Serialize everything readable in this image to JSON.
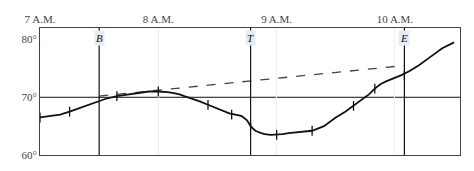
{
  "chart_data": {
    "type": "line",
    "color": "#111111",
    "grid": "x",
    "xlim": [
      7.0,
      10.55
    ],
    "xticks": [
      {
        "value": 7,
        "label": "7 A.M."
      },
      {
        "value": 8,
        "label": "8 A.M."
      },
      {
        "value": 9,
        "label": "9 A.M."
      },
      {
        "value": 10,
        "label": "10 A.M."
      }
    ],
    "ylim": [
      60,
      82
    ],
    "yticks": [
      {
        "value": 60,
        "label": "60°"
      },
      {
        "value": 70,
        "label": "70°"
      },
      {
        "value": 80,
        "label": "80°"
      }
    ],
    "hlines": [
      70
    ],
    "vlines": [
      {
        "x": 7.5,
        "label": "B"
      },
      {
        "x": 8.78,
        "label": "T"
      },
      {
        "x": 10.08,
        "label": "E"
      }
    ],
    "series": [
      {
        "color": "#444444",
        "line_style": "dashed",
        "x": [
          7.5,
          10.08
        ],
        "values": [
          70.2,
          75.5
        ]
      },
      {
        "color": "#111111",
        "line_style": "solid",
        "x": [
          7.0,
          7.08,
          7.17,
          7.25,
          7.35,
          7.45,
          7.55,
          7.65,
          7.75,
          7.85,
          7.92,
          8.0,
          8.08,
          8.13,
          8.18,
          8.22,
          8.28,
          8.35,
          8.42,
          8.5,
          8.55,
          8.6,
          8.65,
          8.7,
          8.72,
          8.75,
          8.78,
          8.82,
          8.87,
          8.9,
          8.95,
          9.0,
          9.05,
          9.1,
          9.2,
          9.3,
          9.4,
          9.5,
          9.58,
          9.65,
          9.72,
          9.78,
          9.83,
          9.88,
          9.93,
          9.98,
          10.05,
          10.12,
          10.2,
          10.3,
          10.4,
          10.5
        ],
        "values": [
          66.5,
          66.7,
          67.0,
          67.5,
          68.2,
          69.0,
          69.7,
          70.2,
          70.5,
          70.8,
          71.0,
          71.0,
          70.9,
          70.7,
          70.5,
          70.2,
          69.8,
          69.3,
          68.7,
          68.0,
          67.5,
          67.2,
          67.0,
          66.8,
          66.5,
          66.0,
          65.0,
          64.2,
          63.8,
          63.6,
          63.5,
          63.5,
          63.6,
          63.8,
          64.0,
          64.2,
          65.0,
          66.5,
          67.5,
          68.5,
          69.5,
          70.5,
          71.5,
          72.3,
          72.8,
          73.2,
          73.8,
          74.5,
          75.5,
          77.0,
          78.5,
          79.5
        ]
      },
      {
        "color": "#111111",
        "line_style": "none",
        "marker": "line-ns",
        "x": [
          7.0,
          7.25,
          7.65,
          8.0,
          8.42,
          8.62,
          8.78,
          9.0,
          9.3,
          9.65,
          9.83,
          10.08
        ],
        "values": [
          66.5,
          67.5,
          70.2,
          71.0,
          68.7,
          67.0,
          65.0,
          63.5,
          64.2,
          68.5,
          71.5,
          73.8
        ]
      }
    ]
  }
}
